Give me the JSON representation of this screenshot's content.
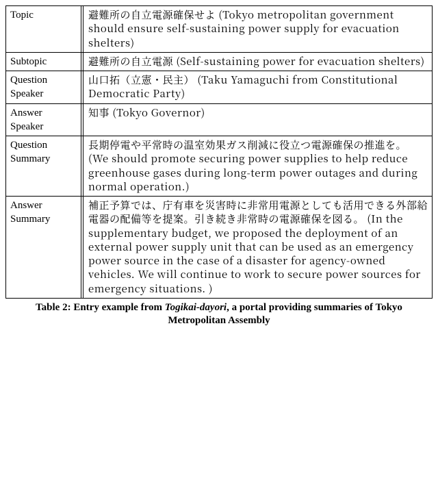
{
  "table": {
    "rows": [
      {
        "label": "Topic",
        "content": "避難所の自立電源確保せよ (Tokyo metropolitan government should ensure self-sustaining power supply for evacuation shelters)"
      },
      {
        "label": "Subtopic",
        "content": "避難所の自立電源 (Self-sustaining power for evacuation shelters)"
      },
      {
        "label": "Question Speaker",
        "content": "山口拓（立憲・民主） (Taku Yamaguchi from Constitutional Democratic Party)"
      },
      {
        "label": "Answer Speaker",
        "content": "知事 (Tokyo Governor)"
      },
      {
        "label": "Question Summary",
        "content": "長期停電や平常時の温室効果ガス削減に役立つ電源確保の推進を。 (We should promote securing power supplies to help reduce greenhouse gases during long-term power outages and during normal operation.)"
      },
      {
        "label": "Answer Summary",
        "content": "補正予算では、庁有車を災害時に非常用電源としても活用できる外部給電器の配備等を提案。引き続き非常時の電源確保を図る。 (In the supplementary budget, we proposed the deployment of an external power supply unit that can be used as an emergency power source in the case of a disaster for agency-owned vehicles. We will continue to work to secure power sources for emergency situations. )"
      }
    ]
  },
  "caption": {
    "prefix": "Table 2: Entry example from ",
    "italic": "Togikai-dayori",
    "suffix": ", a portal providing summaries of Tokyo Metropolitan Assembly"
  }
}
